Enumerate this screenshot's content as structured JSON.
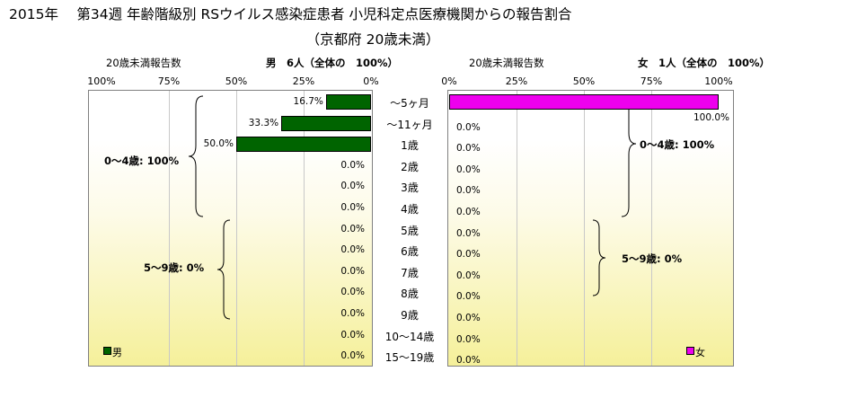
{
  "title_line1": "2015年　 第34週 年齢階級別 RSウイルス感染症患者 小児科定点医療機関からの報告割合",
  "title_line2": "（京都府 20歳未満）",
  "left_panel": {
    "header_left": "20歳未満報告数",
    "header_right": "男　6人（全体の　100%）",
    "ticks": [
      "100%",
      "75%",
      "50%",
      "25%",
      "0%"
    ],
    "legend": "男",
    "color": "#006400"
  },
  "right_panel": {
    "header_left": "20歳未満報告数",
    "header_right": "女　1人（全体の　100%）",
    "ticks": [
      "0%",
      "25%",
      "50%",
      "75%",
      "100%"
    ],
    "legend": "女",
    "color": "#ee00ee"
  },
  "groups": {
    "male_0_4": "0～4歳: 100%",
    "male_5_9": "5～9歳: 0%",
    "female_0_4": "0～4歳: 100%",
    "female_5_9": "5～9歳: 0%"
  },
  "chart_data": {
    "type": "bar",
    "orientation": "horizontal",
    "xlim": [
      0,
      100
    ],
    "categories": [
      "～5ヶ月",
      "～11ヶ月",
      "1歳",
      "2歳",
      "3歳",
      "4歳",
      "5歳",
      "6歳",
      "7歳",
      "8歳",
      "9歳",
      "10～14歳",
      "15～19歳"
    ],
    "series": [
      {
        "name": "男",
        "values": [
          16.7,
          33.3,
          50.0,
          0.0,
          0.0,
          0.0,
          0.0,
          0.0,
          0.0,
          0.0,
          0.0,
          0.0,
          0.0
        ],
        "labels": [
          "16.7%",
          "33.3%",
          "50.0%",
          "0.0%",
          "0.0%",
          "0.0%",
          "0.0%",
          "0.0%",
          "0.0%",
          "0.0%",
          "0.0%",
          "0.0%",
          "0.0%"
        ]
      },
      {
        "name": "女",
        "values": [
          100.0,
          0.0,
          0.0,
          0.0,
          0.0,
          0.0,
          0.0,
          0.0,
          0.0,
          0.0,
          0.0,
          0.0,
          0.0
        ],
        "labels": [
          "100.0%",
          "0.0%",
          "0.0%",
          "0.0%",
          "0.0%",
          "0.0%",
          "0.0%",
          "0.0%",
          "0.0%",
          "0.0%",
          "0.0%",
          "0.0%",
          "0.0%"
        ]
      }
    ]
  }
}
